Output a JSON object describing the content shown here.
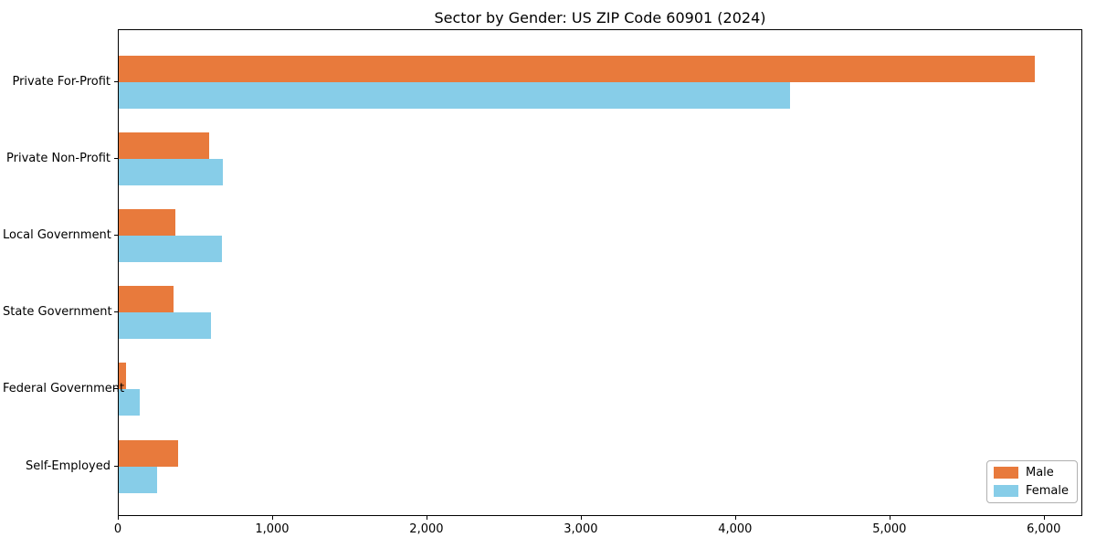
{
  "chart_data": {
    "type": "bar",
    "orientation": "horizontal",
    "title": "Sector by Gender: US ZIP Code 60901 (2024)",
    "categories": [
      "Private For-Profit",
      "Private Non-Profit",
      "Local Government",
      "State Government",
      "Federal Government",
      "Self-Employed"
    ],
    "series": [
      {
        "name": "Male",
        "color": "#e87a3c",
        "values": [
          5950,
          590,
          370,
          355,
          45,
          385
        ]
      },
      {
        "name": "Female",
        "color": "#87cde8",
        "values": [
          4360,
          675,
          670,
          600,
          135,
          250
        ]
      }
    ],
    "xlabel": "",
    "ylabel": "",
    "xlim": [
      0,
      6250
    ],
    "xtick_values": [
      0,
      1000,
      2000,
      3000,
      4000,
      5000,
      6000
    ],
    "xtick_labels": [
      "0",
      "1,000",
      "2,000",
      "3,000",
      "4,000",
      "5,000",
      "6,000"
    ],
    "legend_position": "lower right",
    "grid": false,
    "frame": true
  }
}
